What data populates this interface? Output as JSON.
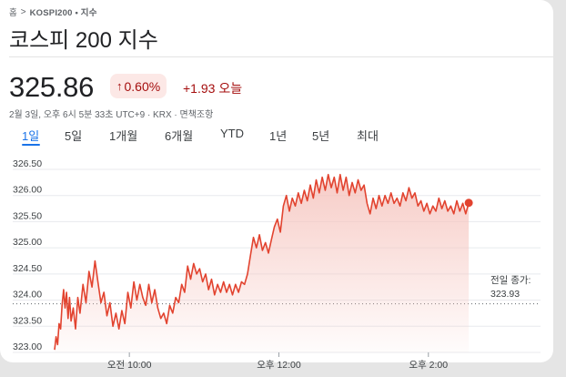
{
  "breadcrumb": {
    "home": "홈",
    "separator": ">",
    "item": "KOSPI200 • 지수"
  },
  "title": "코스피 200 지수",
  "quote": {
    "price": "325.86",
    "change_pct": "0.60%",
    "change_pct_icon": "arrow-up-icon",
    "change_abs": "+1.93 오늘",
    "timestamp": "2월 3일, 오후 6시 5분 33초 UTC+9 · KRX · 면책조항"
  },
  "tabs": [
    {
      "label": "1일",
      "active": true
    },
    {
      "label": "5일"
    },
    {
      "label": "1개월"
    },
    {
      "label": "6개월"
    },
    {
      "label": "YTD"
    },
    {
      "label": "1년"
    },
    {
      "label": "5년"
    },
    {
      "label": "최대"
    }
  ],
  "colors": {
    "line": "#e2432f",
    "fill": "#f6c6c0",
    "positive_text": "#a50e0e",
    "positive_bg": "#fce8e6",
    "tab_active": "#1a73e8"
  },
  "chart_data": {
    "type": "area",
    "ylim": [
      323.0,
      326.5
    ],
    "yticks": [
      "326.50",
      "326.00",
      "325.50",
      "325.00",
      "324.50",
      "324.00",
      "323.50",
      "323.00"
    ],
    "xticks": [
      "오전 10:00",
      "오후 12:00",
      "오후 2:00"
    ],
    "previous_close_label": "전일 종가:",
    "previous_close": "323.93",
    "points": [
      [
        9.0,
        323.05
      ],
      [
        9.02,
        323.3
      ],
      [
        9.04,
        323.15
      ],
      [
        9.06,
        323.55
      ],
      [
        9.08,
        323.45
      ],
      [
        9.1,
        323.9
      ],
      [
        9.12,
        324.2
      ],
      [
        9.14,
        323.85
      ],
      [
        9.16,
        324.15
      ],
      [
        9.18,
        323.65
      ],
      [
        9.2,
        324.05
      ],
      [
        9.22,
        323.6
      ],
      [
        9.25,
        323.85
      ],
      [
        9.28,
        323.45
      ],
      [
        9.31,
        324.05
      ],
      [
        9.34,
        323.75
      ],
      [
        9.38,
        324.3
      ],
      [
        9.42,
        323.95
      ],
      [
        9.46,
        324.55
      ],
      [
        9.5,
        324.25
      ],
      [
        9.54,
        324.75
      ],
      [
        9.58,
        324.35
      ],
      [
        9.62,
        323.95
      ],
      [
        9.66,
        324.15
      ],
      [
        9.7,
        323.7
      ],
      [
        9.74,
        323.95
      ],
      [
        9.78,
        323.5
      ],
      [
        9.82,
        323.75
      ],
      [
        9.86,
        323.45
      ],
      [
        9.9,
        323.8
      ],
      [
        9.94,
        323.55
      ],
      [
        9.98,
        324.15
      ],
      [
        10.02,
        323.85
      ],
      [
        10.06,
        324.35
      ],
      [
        10.1,
        324.0
      ],
      [
        10.14,
        324.3
      ],
      [
        10.18,
        324.05
      ],
      [
        10.22,
        323.9
      ],
      [
        10.26,
        324.3
      ],
      [
        10.3,
        323.95
      ],
      [
        10.34,
        324.2
      ],
      [
        10.38,
        323.85
      ],
      [
        10.42,
        323.65
      ],
      [
        10.46,
        323.75
      ],
      [
        10.5,
        323.55
      ],
      [
        10.54,
        323.9
      ],
      [
        10.58,
        323.75
      ],
      [
        10.62,
        324.05
      ],
      [
        10.66,
        323.95
      ],
      [
        10.7,
        324.3
      ],
      [
        10.74,
        324.15
      ],
      [
        10.78,
        324.65
      ],
      [
        10.82,
        324.4
      ],
      [
        10.86,
        324.7
      ],
      [
        10.9,
        324.5
      ],
      [
        10.94,
        324.6
      ],
      [
        10.98,
        324.35
      ],
      [
        11.02,
        324.5
      ],
      [
        11.06,
        324.2
      ],
      [
        11.1,
        324.4
      ],
      [
        11.14,
        324.1
      ],
      [
        11.18,
        324.3
      ],
      [
        11.22,
        324.15
      ],
      [
        11.26,
        324.35
      ],
      [
        11.3,
        324.15
      ],
      [
        11.34,
        324.3
      ],
      [
        11.38,
        324.1
      ],
      [
        11.42,
        324.3
      ],
      [
        11.46,
        324.15
      ],
      [
        11.5,
        324.35
      ],
      [
        11.54,
        324.3
      ],
      [
        11.58,
        324.5
      ],
      [
        11.62,
        324.85
      ],
      [
        11.66,
        325.2
      ],
      [
        11.7,
        325.0
      ],
      [
        11.74,
        325.25
      ],
      [
        11.78,
        324.95
      ],
      [
        11.82,
        325.1
      ],
      [
        11.86,
        324.9
      ],
      [
        11.9,
        325.15
      ],
      [
        11.94,
        325.4
      ],
      [
        11.98,
        325.55
      ],
      [
        12.02,
        325.3
      ],
      [
        12.06,
        325.8
      ],
      [
        12.1,
        326.0
      ],
      [
        12.14,
        325.7
      ],
      [
        12.18,
        325.95
      ],
      [
        12.22,
        325.8
      ],
      [
        12.26,
        326.05
      ],
      [
        12.3,
        325.85
      ],
      [
        12.34,
        326.1
      ],
      [
        12.38,
        325.9
      ],
      [
        12.42,
        326.2
      ],
      [
        12.46,
        325.95
      ],
      [
        12.5,
        326.3
      ],
      [
        12.54,
        326.05
      ],
      [
        12.58,
        326.35
      ],
      [
        12.62,
        326.1
      ],
      [
        12.66,
        326.4
      ],
      [
        12.7,
        326.15
      ],
      [
        12.74,
        326.35
      ],
      [
        12.78,
        326.05
      ],
      [
        12.82,
        326.4
      ],
      [
        12.86,
        326.1
      ],
      [
        12.9,
        326.35
      ],
      [
        12.94,
        326.0
      ],
      [
        12.98,
        326.25
      ],
      [
        13.02,
        326.05
      ],
      [
        13.06,
        326.3
      ],
      [
        13.1,
        326.1
      ],
      [
        13.14,
        326.2
      ],
      [
        13.18,
        325.85
      ],
      [
        13.22,
        325.65
      ],
      [
        13.26,
        325.95
      ],
      [
        13.3,
        325.75
      ],
      [
        13.34,
        326.0
      ],
      [
        13.38,
        325.8
      ],
      [
        13.42,
        326.0
      ],
      [
        13.46,
        325.85
      ],
      [
        13.5,
        326.05
      ],
      [
        13.54,
        325.85
      ],
      [
        13.58,
        325.95
      ],
      [
        13.62,
        325.8
      ],
      [
        13.66,
        326.05
      ],
      [
        13.7,
        325.9
      ],
      [
        13.74,
        326.15
      ],
      [
        13.78,
        325.95
      ],
      [
        13.82,
        326.05
      ],
      [
        13.86,
        325.8
      ],
      [
        13.9,
        325.9
      ],
      [
        13.94,
        325.7
      ],
      [
        13.98,
        325.85
      ],
      [
        14.02,
        325.65
      ],
      [
        14.06,
        325.8
      ],
      [
        14.1,
        325.7
      ],
      [
        14.14,
        325.95
      ],
      [
        14.18,
        325.75
      ],
      [
        14.22,
        325.9
      ],
      [
        14.26,
        325.7
      ],
      [
        14.3,
        325.8
      ],
      [
        14.34,
        325.65
      ],
      [
        14.38,
        325.9
      ],
      [
        14.42,
        325.7
      ],
      [
        14.46,
        325.85
      ],
      [
        14.5,
        325.65
      ],
      [
        14.54,
        325.86
      ]
    ]
  }
}
